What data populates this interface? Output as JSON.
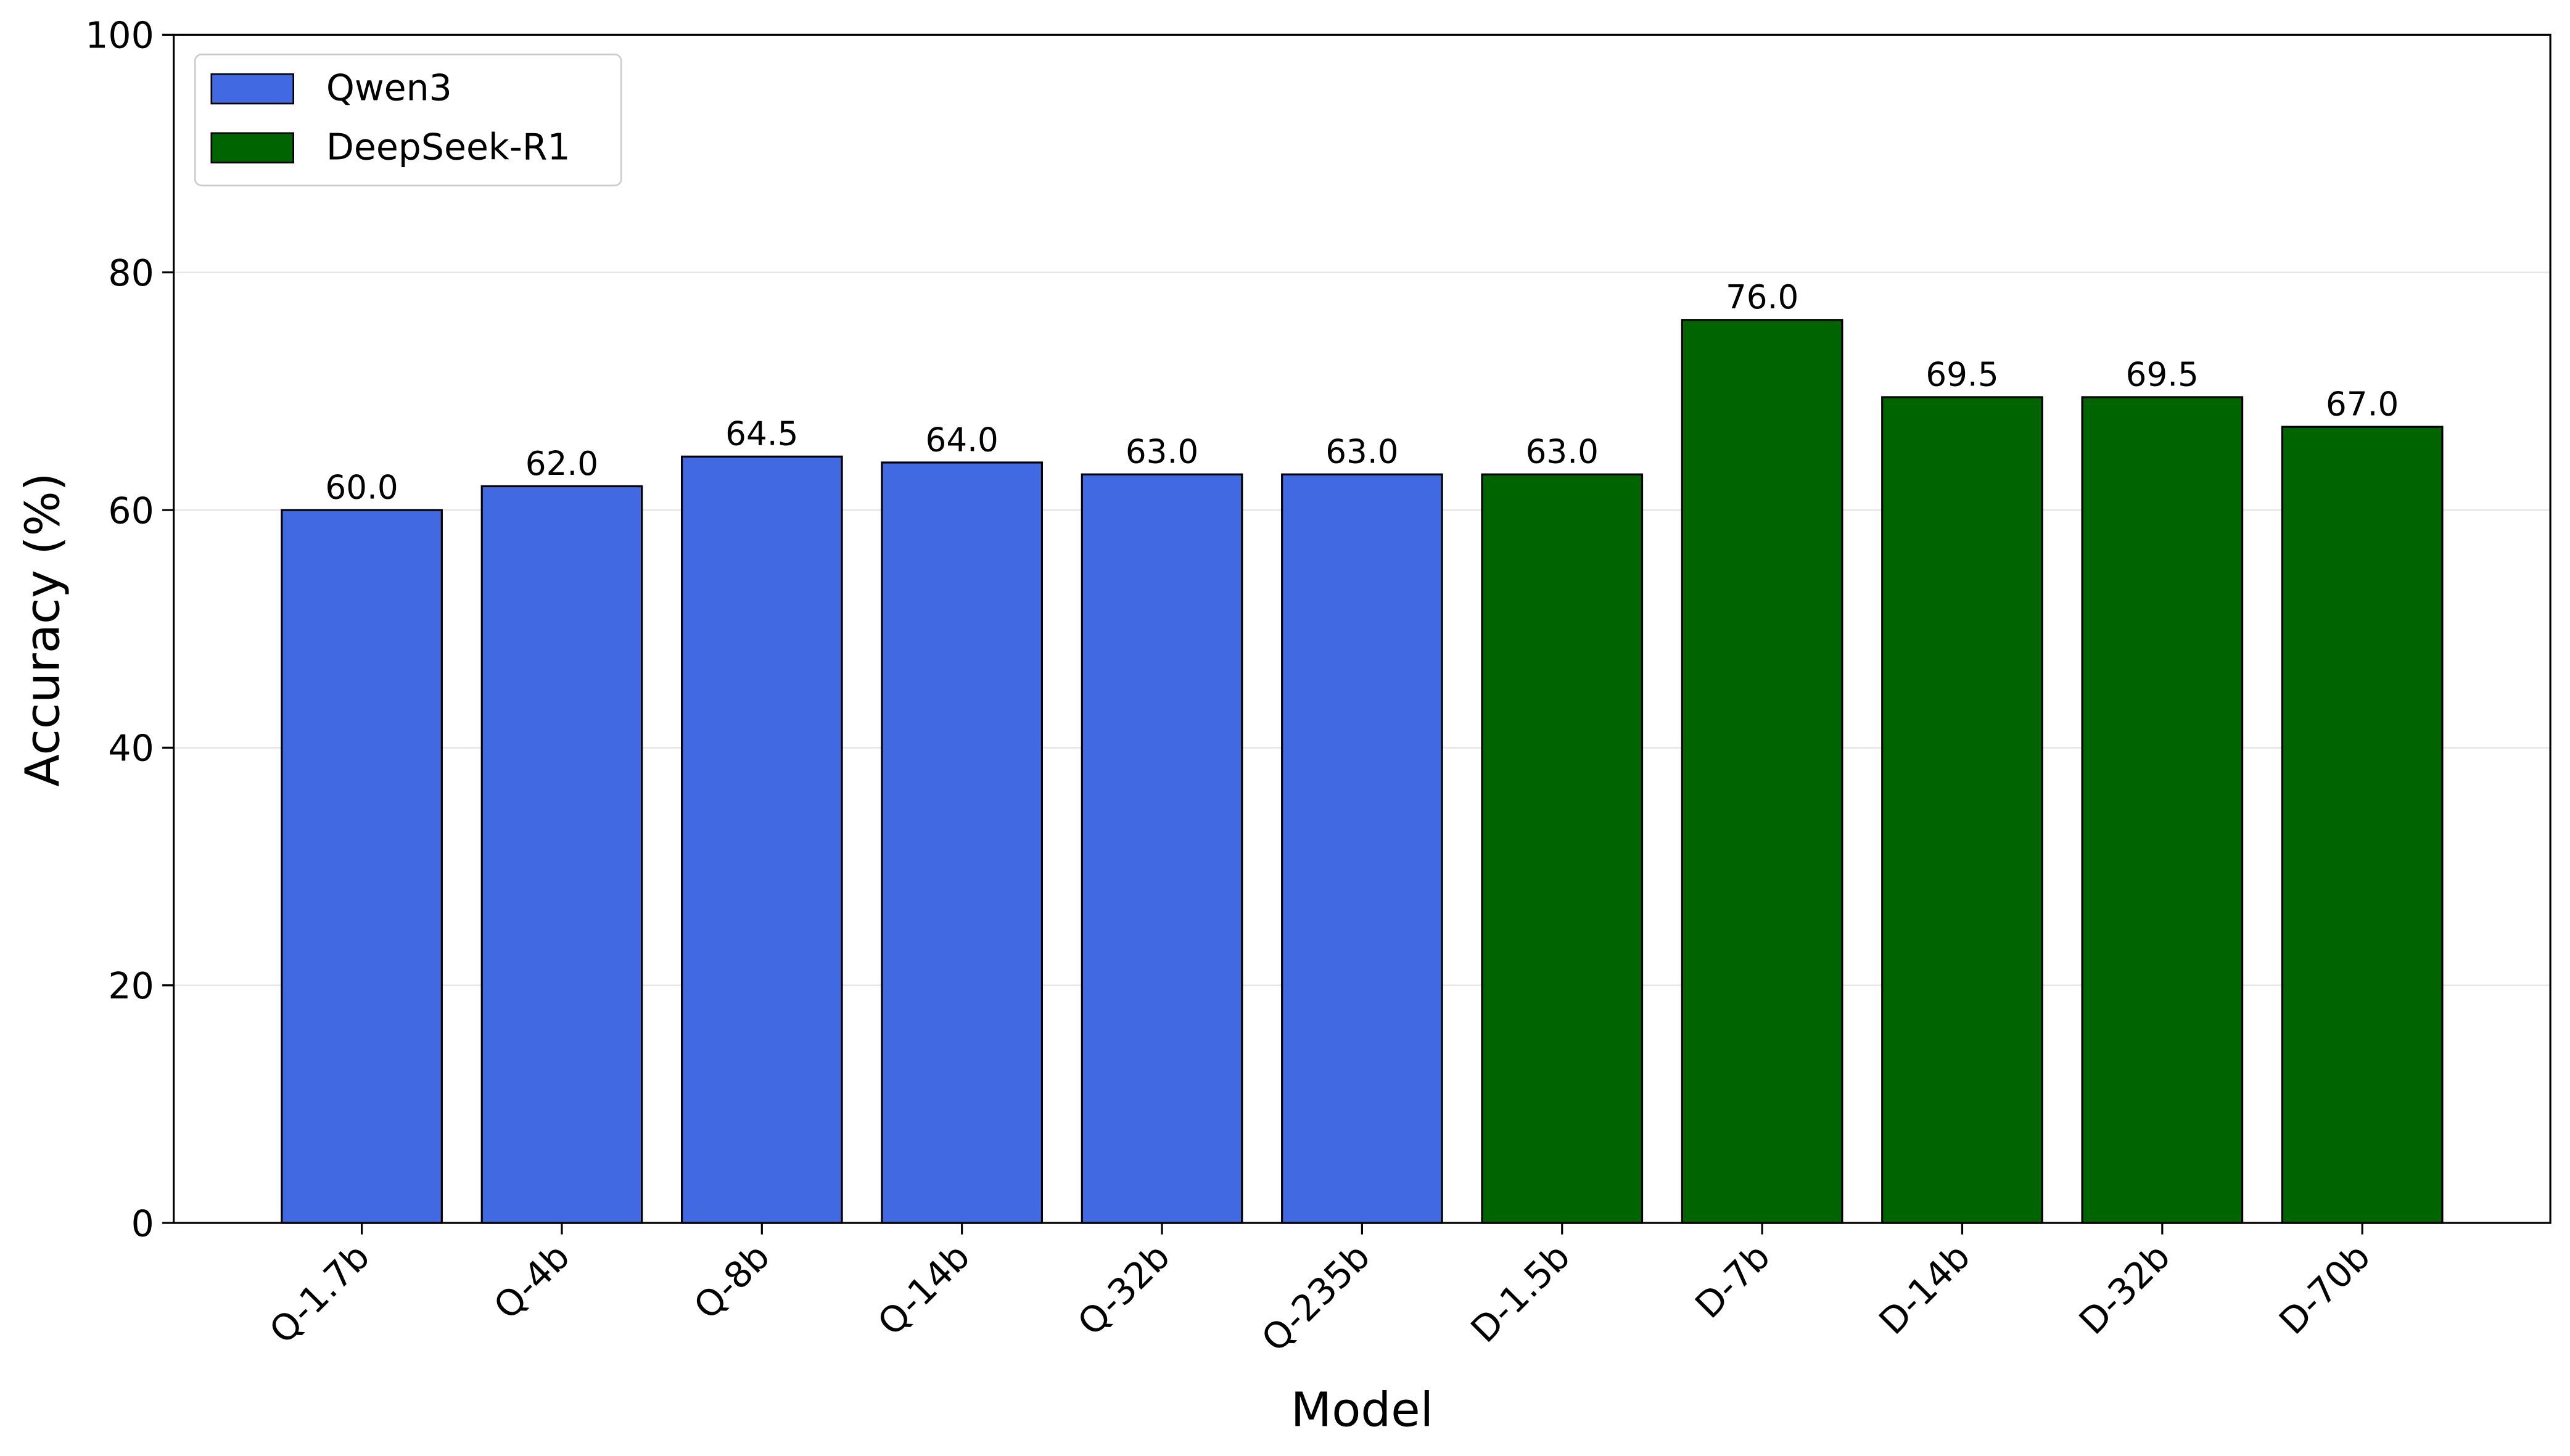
{
  "chart_data": {
    "type": "bar",
    "x_label": "Model",
    "y_label": "Accuracy (%)",
    "categories": [
      "Q-1.7b",
      "Q-4b",
      "Q-8b",
      "Q-14b",
      "Q-32b",
      "Q-235b",
      "D-1.5b",
      "D-7b",
      "D-14b",
      "D-32b",
      "D-70b"
    ],
    "series": [
      {
        "name": "Qwen3",
        "color": "#4169e1",
        "values": [
          60,
          62,
          64.5,
          64,
          63,
          63,
          null,
          null,
          null,
          null,
          null
        ],
        "value_labels": [
          "60.0",
          "62.0",
          "64.5",
          "64.0",
          "63.0",
          "63.0",
          null,
          null,
          null,
          null,
          null
        ]
      },
      {
        "name": "DeepSeek-R1",
        "color": "#006400",
        "values": [
          null,
          null,
          null,
          null,
          null,
          null,
          63,
          76,
          69.5,
          69.5,
          67
        ],
        "value_labels": [
          null,
          null,
          null,
          null,
          null,
          null,
          "63.0",
          "76.0",
          "69.5",
          "69.5",
          "67.0"
        ]
      }
    ],
    "ylim": [
      0,
      100
    ],
    "yticks": [
      0,
      20,
      40,
      60,
      80,
      100
    ],
    "grid": true,
    "legend": "upper left"
  }
}
